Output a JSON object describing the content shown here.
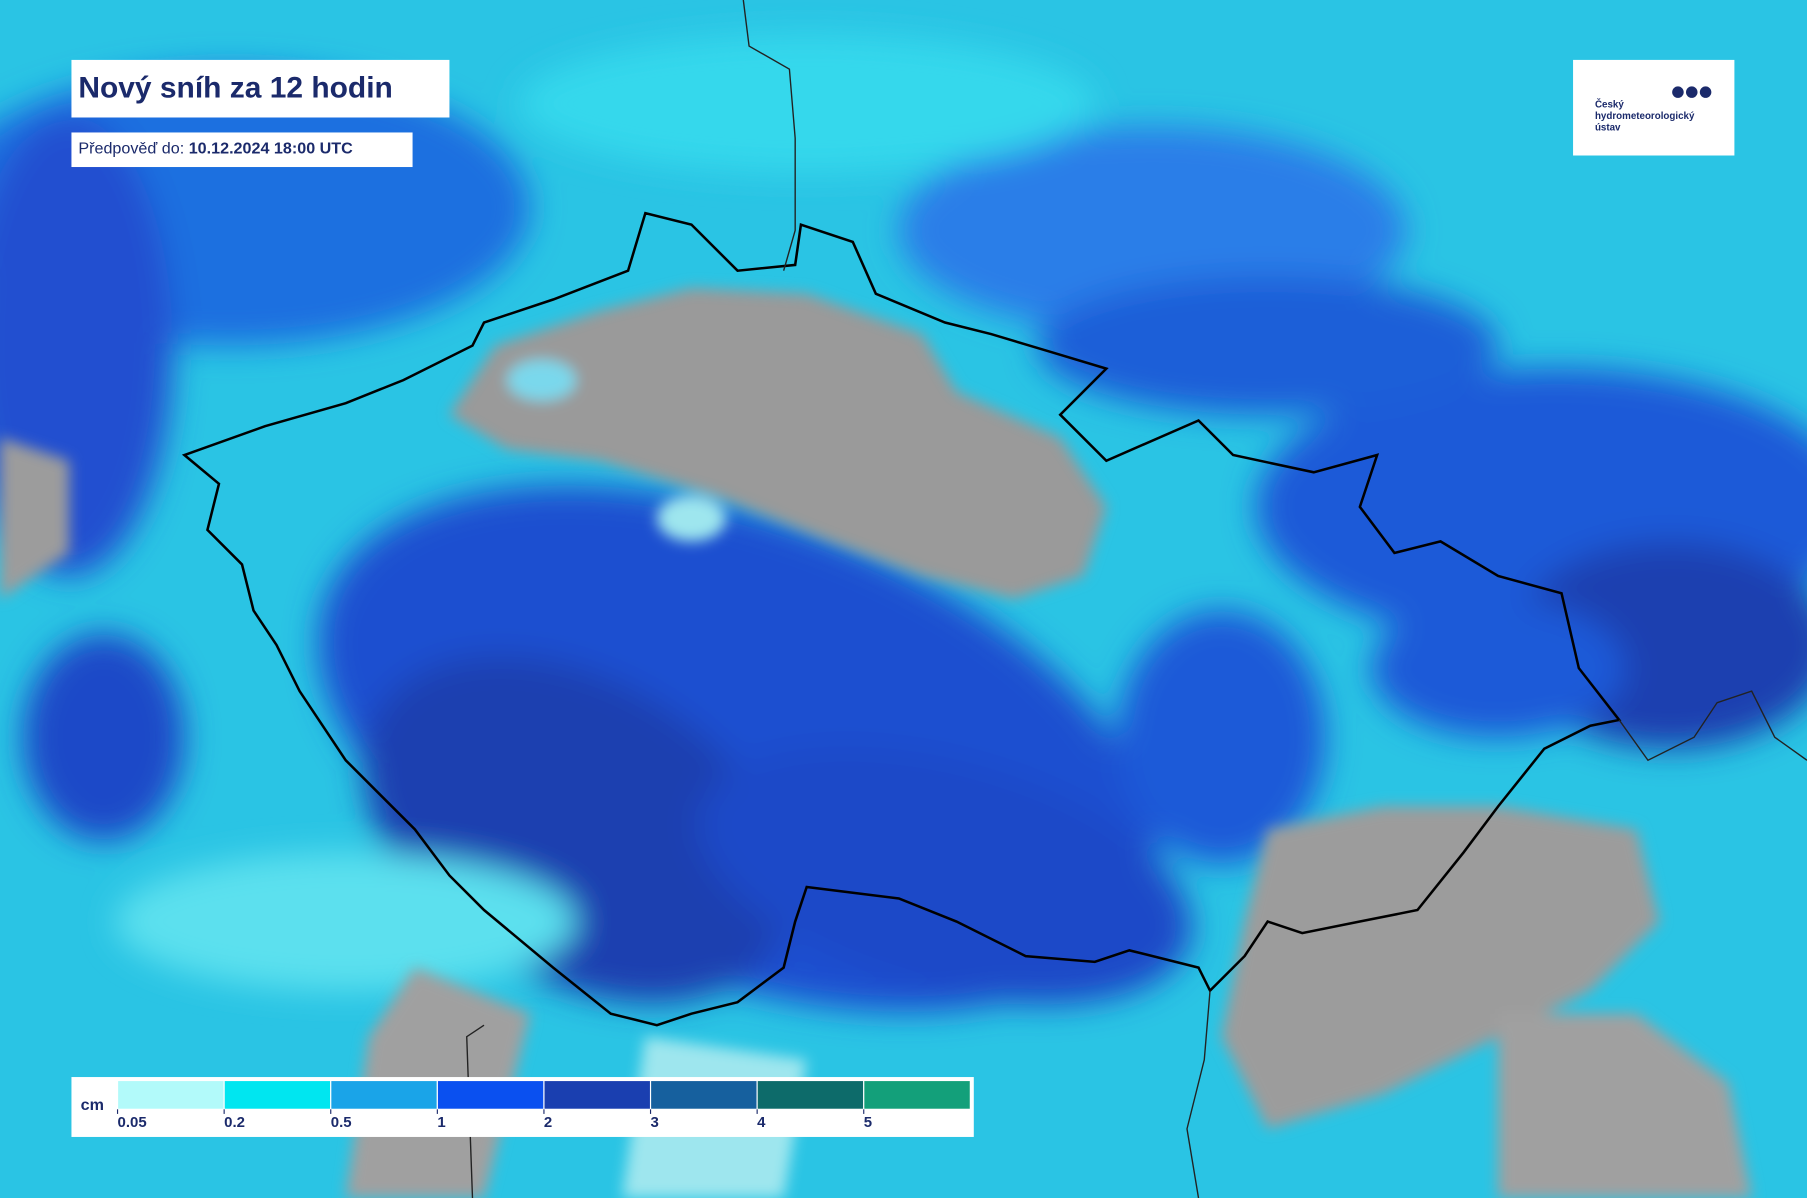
{
  "header": {
    "title": "Nový sníh za 12 hodin",
    "forecast_label": "Předpověď do:",
    "forecast_time": "10.12.2024 18:00 UTC"
  },
  "logo": {
    "lines": [
      "Český",
      "hydrometeorologický",
      "ústav"
    ]
  },
  "legend": {
    "unit": "cm",
    "colors": [
      "#b2fafa",
      "#00e6f0",
      "#1aa4e8",
      "#0a50f0",
      "#1a3fb0",
      "#16609e",
      "#0d6b6a",
      "#13a07a"
    ],
    "ticks": [
      0.05,
      0.2,
      0.5,
      1,
      2,
      3,
      4,
      5
    ]
  }
}
